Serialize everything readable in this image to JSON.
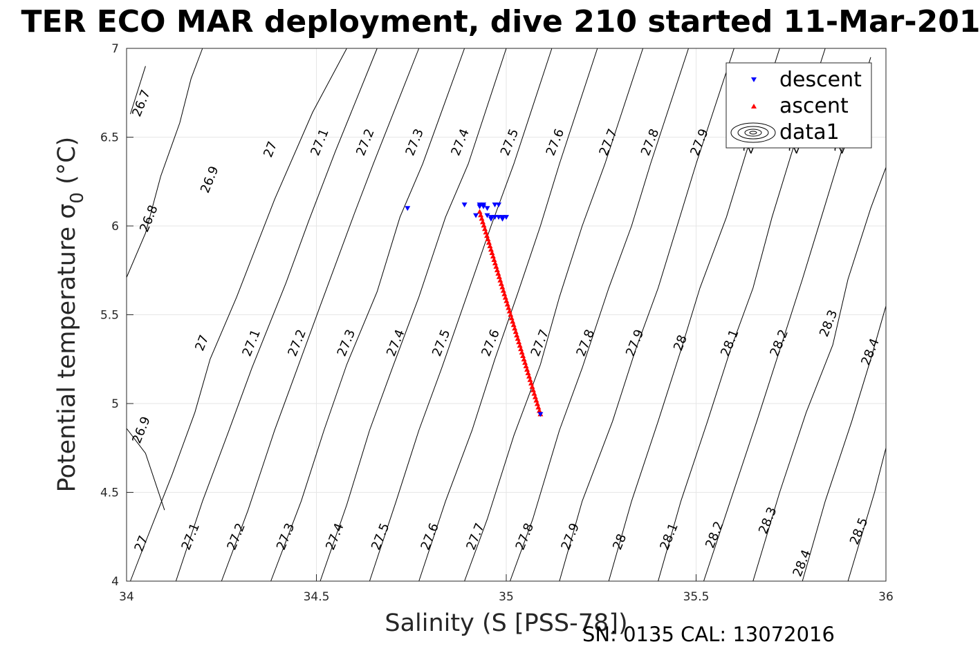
{
  "chart_data": {
    "type": "scatter",
    "title": "TER ECO MAR deployment, dive 210 started 11-Mar-201",
    "xlabel": "Salinity (S [PSS-78])",
    "ylabel_main": "Potential temperature ",
    "ylabel_sigma": "σ",
    "ylabel_sub": "0",
    "ylabel_unit": " (°C)",
    "xlim": [
      34,
      36
    ],
    "ylim": [
      4,
      7
    ],
    "xticks": [
      "34",
      "34.5",
      "35",
      "35.5",
      "36"
    ],
    "yticks": [
      "4",
      "4.5",
      "5",
      "5.5",
      "6",
      "6.5",
      "7"
    ],
    "grid": true,
    "legend_position": "top-right",
    "legend": [
      "descent",
      "ascent",
      "data1"
    ],
    "footer": "SN: 0135  CAL: 13072016",
    "colors": {
      "descent": "#0000ff",
      "ascent": "#ff0000",
      "contour": "#000000",
      "grid": "#e6e6e6"
    },
    "density_contours": [
      {
        "label": "26.7",
        "points": [
          [
            34.01,
            6.63
          ],
          [
            34.05,
            6.9
          ]
        ]
      },
      {
        "label": "26.8",
        "points": [
          [
            34.0,
            5.71
          ],
          [
            34.05,
            5.96
          ],
          [
            34.09,
            6.28
          ],
          [
            34.14,
            6.58
          ],
          [
            34.17,
            6.83
          ],
          [
            34.2,
            7.0
          ]
        ]
      },
      {
        "label": "26.9",
        "points": [
          [
            34.1,
            4.4
          ],
          [
            34.05,
            4.72
          ],
          [
            34.0,
            4.86
          ]
        ]
      },
      {
        "label": "27",
        "points": [
          [
            34.01,
            4.0
          ],
          [
            34.05,
            4.22
          ],
          [
            34.12,
            4.6
          ],
          [
            34.18,
            4.95
          ],
          [
            34.22,
            5.25
          ],
          [
            34.29,
            5.6
          ],
          [
            34.39,
            6.15
          ],
          [
            34.49,
            6.64
          ],
          [
            34.58,
            7.0
          ]
        ]
      },
      {
        "label": "27.1",
        "points": [
          [
            34.13,
            4.0
          ],
          [
            34.2,
            4.45
          ],
          [
            34.27,
            4.85
          ],
          [
            34.33,
            5.2
          ],
          [
            34.42,
            5.68
          ],
          [
            34.48,
            6.03
          ],
          [
            34.55,
            6.42
          ],
          [
            34.66,
            7.0
          ]
        ]
      },
      {
        "label": "27.2",
        "points": [
          [
            34.25,
            4.0
          ],
          [
            34.32,
            4.4
          ],
          [
            34.39,
            4.85
          ],
          [
            34.45,
            5.2
          ],
          [
            34.51,
            5.55
          ],
          [
            34.6,
            6.07
          ],
          [
            34.65,
            6.35
          ],
          [
            34.77,
            7.0
          ]
        ]
      },
      {
        "label": "27.3",
        "points": [
          [
            34.38,
            4.0
          ],
          [
            34.46,
            4.45
          ],
          [
            34.52,
            4.85
          ],
          [
            34.58,
            5.22
          ],
          [
            34.66,
            5.63
          ],
          [
            34.72,
            6.05
          ],
          [
            34.78,
            6.35
          ],
          [
            34.89,
            7.0
          ]
        ]
      },
      {
        "label": "27.4",
        "points": [
          [
            34.51,
            4.0
          ],
          [
            34.58,
            4.43
          ],
          [
            34.64,
            4.85
          ],
          [
            34.7,
            5.2
          ],
          [
            34.77,
            5.6
          ],
          [
            34.84,
            6.05
          ],
          [
            34.9,
            6.35
          ],
          [
            35.0,
            7.0
          ]
        ]
      },
      {
        "label": "27.5",
        "points": [
          [
            34.64,
            4.0
          ],
          [
            34.71,
            4.45
          ],
          [
            34.77,
            4.85
          ],
          [
            34.83,
            5.2
          ],
          [
            34.9,
            5.63
          ],
          [
            34.96,
            6.0
          ],
          [
            35.02,
            6.35
          ],
          [
            35.12,
            7.0
          ]
        ]
      },
      {
        "label": "27.6",
        "points": [
          [
            34.77,
            4.0
          ],
          [
            34.84,
            4.45
          ],
          [
            34.91,
            4.85
          ],
          [
            34.97,
            5.25
          ],
          [
            35.03,
            5.62
          ],
          [
            35.09,
            6.0
          ],
          [
            35.14,
            6.35
          ],
          [
            35.24,
            7.0
          ]
        ]
      },
      {
        "label": "27.7",
        "points": [
          [
            34.89,
            4.0
          ],
          [
            34.95,
            4.35
          ],
          [
            35.02,
            4.82
          ],
          [
            35.09,
            5.22
          ],
          [
            35.14,
            5.6
          ],
          [
            35.2,
            6.0
          ],
          [
            35.26,
            6.35
          ],
          [
            35.36,
            7.0
          ]
        ]
      },
      {
        "label": "27.8",
        "points": [
          [
            35.01,
            4.0
          ],
          [
            35.07,
            4.35
          ],
          [
            35.14,
            4.85
          ],
          [
            35.2,
            5.2
          ],
          [
            35.27,
            5.65
          ],
          [
            35.33,
            6.0
          ],
          [
            35.38,
            6.35
          ],
          [
            35.48,
            7.0
          ]
        ]
      },
      {
        "label": "27.9",
        "points": [
          [
            35.14,
            4.0
          ],
          [
            35.2,
            4.45
          ],
          [
            35.28,
            4.9
          ],
          [
            35.34,
            5.3
          ],
          [
            35.4,
            5.65
          ],
          [
            35.45,
            6.0
          ],
          [
            35.5,
            6.35
          ],
          [
            35.6,
            7.0
          ]
        ]
      },
      {
        "label": "28",
        "points": [
          [
            35.27,
            4.0
          ],
          [
            35.33,
            4.45
          ],
          [
            35.4,
            4.9
          ],
          [
            35.46,
            5.3
          ],
          [
            35.51,
            5.65
          ],
          [
            35.58,
            6.05
          ],
          [
            35.63,
            6.4
          ],
          [
            35.72,
            7.0
          ]
        ]
      },
      {
        "label": "28.1",
        "points": [
          [
            35.4,
            4.0
          ],
          [
            35.46,
            4.45
          ],
          [
            35.53,
            4.9
          ],
          [
            35.59,
            5.3
          ],
          [
            35.65,
            5.65
          ],
          [
            35.7,
            6.05
          ],
          [
            35.75,
            6.4
          ],
          [
            35.84,
            7.0
          ]
        ]
      },
      {
        "label": "28.2",
        "points": [
          [
            35.52,
            4.0
          ],
          [
            35.59,
            4.45
          ],
          [
            35.66,
            4.9
          ],
          [
            35.72,
            5.3
          ],
          [
            35.78,
            5.7
          ],
          [
            35.83,
            6.05
          ],
          [
            35.88,
            6.4
          ],
          [
            35.96,
            6.95
          ]
        ]
      },
      {
        "label": "28.3",
        "points": [
          [
            35.65,
            4.0
          ],
          [
            35.72,
            4.5
          ],
          [
            35.79,
            4.95
          ],
          [
            35.86,
            5.33
          ],
          [
            35.9,
            5.7
          ],
          [
            35.96,
            6.1
          ],
          [
            36.0,
            6.33
          ]
        ]
      },
      {
        "label": "28.4",
        "points": [
          [
            35.78,
            4.0
          ],
          [
            35.84,
            4.45
          ],
          [
            35.91,
            4.9
          ],
          [
            35.96,
            5.25
          ],
          [
            36.0,
            5.55
          ]
        ]
      },
      {
        "label": "28.5",
        "points": [
          [
            35.9,
            4.0
          ],
          [
            35.97,
            4.5
          ],
          [
            36.0,
            4.75
          ]
        ]
      }
    ],
    "contour_labels": [
      {
        "text": "26.7",
        "x": 34.04,
        "y": 6.69,
        "angle": -68
      },
      {
        "text": "26.8",
        "x": 34.06,
        "y": 6.04,
        "angle": -68
      },
      {
        "text": "26.9",
        "x": 34.22,
        "y": 6.26,
        "angle": -68
      },
      {
        "text": "27",
        "x": 34.38,
        "y": 6.43,
        "angle": -68
      },
      {
        "text": "27.1",
        "x": 34.51,
        "y": 6.47,
        "angle": -68
      },
      {
        "text": "27.2",
        "x": 34.63,
        "y": 6.47,
        "angle": -68
      },
      {
        "text": "27.3",
        "x": 34.76,
        "y": 6.47,
        "angle": -68
      },
      {
        "text": "27.4",
        "x": 34.88,
        "y": 6.47,
        "angle": -68
      },
      {
        "text": "27.5",
        "x": 35.01,
        "y": 6.47,
        "angle": -68
      },
      {
        "text": "27.6",
        "x": 35.13,
        "y": 6.47,
        "angle": -68
      },
      {
        "text": "27.7",
        "x": 35.27,
        "y": 6.47,
        "angle": -68
      },
      {
        "text": "27.8",
        "x": 35.38,
        "y": 6.47,
        "angle": -68
      },
      {
        "text": "27.9",
        "x": 35.51,
        "y": 6.47,
        "angle": -68
      },
      {
        "text": "2",
        "x": 35.64,
        "y": 6.43,
        "angle": -68
      },
      {
        "text": "2",
        "x": 35.76,
        "y": 6.43,
        "angle": -68
      },
      {
        "text": "2",
        "x": 35.88,
        "y": 6.43,
        "angle": -68
      },
      {
        "text": "27",
        "x": 34.2,
        "y": 5.34,
        "angle": -68
      },
      {
        "text": "27.1",
        "x": 34.33,
        "y": 5.34,
        "angle": -68
      },
      {
        "text": "27.2",
        "x": 34.45,
        "y": 5.34,
        "angle": -68
      },
      {
        "text": "27.3",
        "x": 34.58,
        "y": 5.34,
        "angle": -68
      },
      {
        "text": "27.4",
        "x": 34.71,
        "y": 5.34,
        "angle": -68
      },
      {
        "text": "27.5",
        "x": 34.83,
        "y": 5.34,
        "angle": -68
      },
      {
        "text": "27.6",
        "x": 34.96,
        "y": 5.34,
        "angle": -68
      },
      {
        "text": "27.7",
        "x": 35.09,
        "y": 5.34,
        "angle": -68
      },
      {
        "text": "27.8",
        "x": 35.21,
        "y": 5.34,
        "angle": -68
      },
      {
        "text": "27.9",
        "x": 35.34,
        "y": 5.34,
        "angle": -68
      },
      {
        "text": "28",
        "x": 35.46,
        "y": 5.34,
        "angle": -68
      },
      {
        "text": "28.1",
        "x": 35.59,
        "y": 5.34,
        "angle": -68
      },
      {
        "text": "28.2",
        "x": 35.72,
        "y": 5.34,
        "angle": -68
      },
      {
        "text": "28.3",
        "x": 35.85,
        "y": 5.45,
        "angle": -68
      },
      {
        "text": "28.4",
        "x": 35.96,
        "y": 5.29,
        "angle": -68
      },
      {
        "text": "26.9",
        "x": 34.04,
        "y": 4.85,
        "angle": -68
      },
      {
        "text": "27",
        "x": 34.04,
        "y": 4.21,
        "angle": -68
      },
      {
        "text": "27.1",
        "x": 34.17,
        "y": 4.25,
        "angle": -68
      },
      {
        "text": "27.2",
        "x": 34.29,
        "y": 4.25,
        "angle": -68
      },
      {
        "text": "27.3",
        "x": 34.42,
        "y": 4.25,
        "angle": -68
      },
      {
        "text": "27.4",
        "x": 34.55,
        "y": 4.25,
        "angle": -68
      },
      {
        "text": "27.5",
        "x": 34.67,
        "y": 4.25,
        "angle": -68
      },
      {
        "text": "27.6",
        "x": 34.8,
        "y": 4.25,
        "angle": -68
      },
      {
        "text": "27.7",
        "x": 34.92,
        "y": 4.25,
        "angle": -68
      },
      {
        "text": "27.8",
        "x": 35.05,
        "y": 4.25,
        "angle": -68
      },
      {
        "text": "27.9",
        "x": 35.17,
        "y": 4.25,
        "angle": -68
      },
      {
        "text": "28",
        "x": 35.3,
        "y": 4.22,
        "angle": -68
      },
      {
        "text": "28.1",
        "x": 35.43,
        "y": 4.25,
        "angle": -68
      },
      {
        "text": "28.2",
        "x": 35.55,
        "y": 4.26,
        "angle": -68
      },
      {
        "text": "28.3",
        "x": 35.69,
        "y": 4.34,
        "angle": -68
      },
      {
        "text": "28.4",
        "x": 35.78,
        "y": 4.1,
        "angle": -68
      },
      {
        "text": "28.5",
        "x": 35.93,
        "y": 4.28,
        "angle": -68
      }
    ],
    "series": [
      {
        "name": "descent",
        "marker": "triangle-down",
        "points": [
          [
            34.74,
            6.1
          ],
          [
            34.89,
            6.12
          ],
          [
            34.92,
            6.06
          ],
          [
            34.93,
            6.12
          ],
          [
            34.93,
            6.11
          ],
          [
            34.94,
            6.12
          ],
          [
            34.94,
            6.11
          ],
          [
            34.95,
            6.1
          ],
          [
            34.95,
            6.06
          ],
          [
            34.96,
            6.05
          ],
          [
            34.96,
            6.04
          ],
          [
            34.97,
            6.05
          ],
          [
            34.97,
            6.12
          ],
          [
            34.98,
            6.05
          ],
          [
            34.98,
            6.12
          ],
          [
            34.99,
            6.04
          ],
          [
            34.99,
            6.05
          ],
          [
            35.0,
            6.05
          ],
          [
            35.09,
            4.94
          ]
        ]
      },
      {
        "name": "ascent",
        "marker": "triangle-up",
        "start": [
          34.93,
          6.08
        ],
        "end": [
          35.09,
          4.94
        ],
        "count": 60
      }
    ]
  }
}
